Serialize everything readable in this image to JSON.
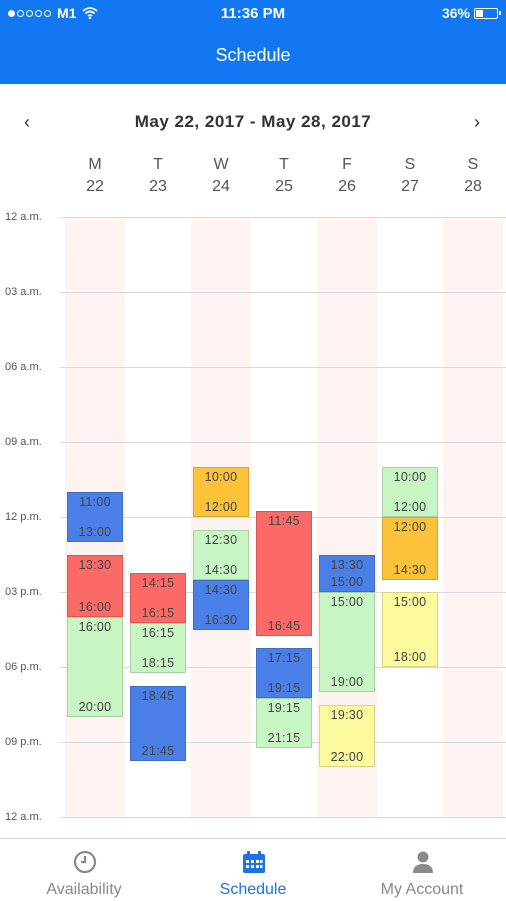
{
  "status_bar": {
    "carrier": "M1",
    "time": "11:36 PM",
    "battery": "36%"
  },
  "header": {
    "title": "Schedule"
  },
  "week": {
    "range": "May 22, 2017  -  May 28, 2017",
    "prev_icon": "‹",
    "next_icon": "›"
  },
  "days": [
    {
      "letter": "M",
      "date": "22"
    },
    {
      "letter": "T",
      "date": "23"
    },
    {
      "letter": "W",
      "date": "24"
    },
    {
      "letter": "T",
      "date": "25"
    },
    {
      "letter": "F",
      "date": "26"
    },
    {
      "letter": "S",
      "date": "27"
    },
    {
      "letter": "S",
      "date": "28"
    }
  ],
  "time_labels": [
    "12 a.m.",
    "03 a.m.",
    "06 a.m.",
    "09 a.m.",
    "12 p.m.",
    "03 p.m.",
    "06 p.m.",
    "09 p.m.",
    "12 a.m."
  ],
  "colors": {
    "blue": "#4a7fe8",
    "red": "#fb6a67",
    "green": "#c8f5c4",
    "orange": "#fbc23a",
    "yellow": "#fdfa9e",
    "header": "#1177f2",
    "accent": "#1a73e8"
  },
  "events": [
    {
      "day": 0,
      "start": "11:00",
      "end": "13:00",
      "color": "blue"
    },
    {
      "day": 0,
      "start": "13:30",
      "end": "16:00",
      "color": "red"
    },
    {
      "day": 0,
      "start": "16:00",
      "end": "20:00",
      "color": "green"
    },
    {
      "day": 1,
      "start": "14:15",
      "end": "16:15",
      "color": "red"
    },
    {
      "day": 1,
      "start": "16:15",
      "end": "18:15",
      "color": "green"
    },
    {
      "day": 1,
      "start": "18:45",
      "end": "21:45",
      "color": "blue"
    },
    {
      "day": 2,
      "start": "10:00",
      "end": "12:00",
      "color": "orange"
    },
    {
      "day": 2,
      "start": "12:30",
      "end": "14:30",
      "color": "green"
    },
    {
      "day": 2,
      "start": "14:30",
      "end": "16:30",
      "color": "blue"
    },
    {
      "day": 3,
      "start": "11:45",
      "end": "16:45",
      "color": "red"
    },
    {
      "day": 3,
      "start": "17:15",
      "end": "19:15",
      "color": "blue"
    },
    {
      "day": 3,
      "start": "19:15",
      "end": "21:15",
      "color": "green"
    },
    {
      "day": 4,
      "start": "13:30",
      "end": "15:00",
      "color": "blue"
    },
    {
      "day": 4,
      "start": "15:00",
      "end": "19:00",
      "color": "green"
    },
    {
      "day": 4,
      "start": "19:30",
      "end": "22:00",
      "color": "yellow"
    },
    {
      "day": 5,
      "start": "10:00",
      "end": "12:00",
      "color": "green"
    },
    {
      "day": 5,
      "start": "12:00",
      "end": "14:30",
      "color": "orange"
    },
    {
      "day": 5,
      "start": "15:00",
      "end": "18:00",
      "color": "yellow"
    }
  ],
  "tabs": [
    {
      "label": "Availability",
      "icon": "clock-icon",
      "active": false
    },
    {
      "label": "Schedule",
      "icon": "calendar-icon",
      "active": true
    },
    {
      "label": "My Account",
      "icon": "person-icon",
      "active": false
    }
  ]
}
